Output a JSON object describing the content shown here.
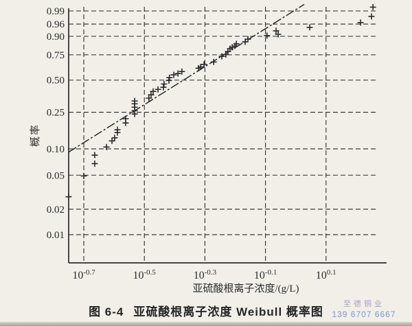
{
  "page": {
    "paper_color": "#f1efe8",
    "ink_color": "#2b2b2b"
  },
  "caption": {
    "number": "图 6-4",
    "title": "亚硫酸根离子浓度 Weibull 概率图"
  },
  "watermark": {
    "line1": "至德铜业",
    "line2": "139 6707 6667",
    "color1": "#9b86c4",
    "color2": "#5f7fd2"
  },
  "chart_data": {
    "type": "scatter",
    "title": "图 6-4 亚硫酸根离子浓度 Weibull 概率图",
    "xlabel": "亚硫酸根离子浓度/(g/L)",
    "ylabel": "概率",
    "x_scale": "log10",
    "y_scale": "weibull-probability",
    "grid": "dashed",
    "legend": "none",
    "marker": "plus",
    "xlim": [
      -0.75,
      0.3
    ],
    "tick_base": "10",
    "x_ticks": [
      {
        "value": -0.7,
        "exponent": "-0.7"
      },
      {
        "value": -0.5,
        "exponent": "-0.5"
      },
      {
        "value": -0.3,
        "exponent": "-0.3"
      },
      {
        "value": -0.1,
        "exponent": "-0.1"
      },
      {
        "value": 0.1,
        "exponent": "0.1"
      }
    ],
    "y_ticks": [
      {
        "p": 0.99,
        "label": "0.99"
      },
      {
        "p": 0.96,
        "label": "0.96"
      },
      {
        "p": 0.9,
        "label": "0.90"
      },
      {
        "p": 0.75,
        "label": "0.75"
      },
      {
        "p": 0.5,
        "label": "0.50"
      },
      {
        "p": 0.25,
        "label": "0.25"
      },
      {
        "p": 0.1,
        "label": "0.10"
      },
      {
        "p": 0.05,
        "label": "0.05"
      },
      {
        "p": 0.02,
        "label": "0.02"
      },
      {
        "p": 0.01,
        "label": "0.01"
      }
    ],
    "fit_line": {
      "x1": -0.75,
      "p1": 0.092,
      "x2": 0.028,
      "p2": 0.996
    },
    "points": [
      [
        -0.75,
        0.028
      ],
      [
        -0.7,
        0.049
      ],
      [
        -0.664,
        0.068
      ],
      [
        -0.664,
        0.085
      ],
      [
        -0.625,
        0.105
      ],
      [
        -0.607,
        0.123
      ],
      [
        -0.598,
        0.133
      ],
      [
        -0.589,
        0.152
      ],
      [
        -0.589,
        0.163
      ],
      [
        -0.562,
        0.193
      ],
      [
        -0.562,
        0.214
      ],
      [
        -0.532,
        0.24
      ],
      [
        -0.532,
        0.259
      ],
      [
        -0.532,
        0.281
      ],
      [
        -0.532,
        0.304
      ],
      [
        -0.532,
        0.324
      ],
      [
        -0.485,
        0.345
      ],
      [
        -0.478,
        0.371
      ],
      [
        -0.471,
        0.399
      ],
      [
        -0.455,
        0.416
      ],
      [
        -0.437,
        0.434
      ],
      [
        -0.435,
        0.464
      ],
      [
        -0.419,
        0.496
      ],
      [
        -0.417,
        0.524
      ],
      [
        -0.403,
        0.551
      ],
      [
        -0.389,
        0.564
      ],
      [
        -0.376,
        0.584
      ],
      [
        -0.321,
        0.617
      ],
      [
        -0.314,
        0.63
      ],
      [
        -0.303,
        0.656
      ],
      [
        -0.271,
        0.68
      ],
      [
        -0.244,
        0.735
      ],
      [
        -0.231,
        0.753
      ],
      [
        -0.224,
        0.781
      ],
      [
        -0.217,
        0.806
      ],
      [
        -0.21,
        0.818
      ],
      [
        -0.201,
        0.829
      ],
      [
        -0.196,
        0.846
      ],
      [
        -0.167,
        0.862
      ],
      [
        -0.158,
        0.881
      ],
      [
        -0.095,
        0.904
      ],
      [
        -0.065,
        0.931
      ],
      [
        -0.058,
        0.912
      ],
      [
        0.046,
        0.947
      ],
      [
        0.214,
        0.965
      ],
      [
        0.25,
        0.981
      ],
      [
        0.255,
        0.994
      ]
    ]
  }
}
